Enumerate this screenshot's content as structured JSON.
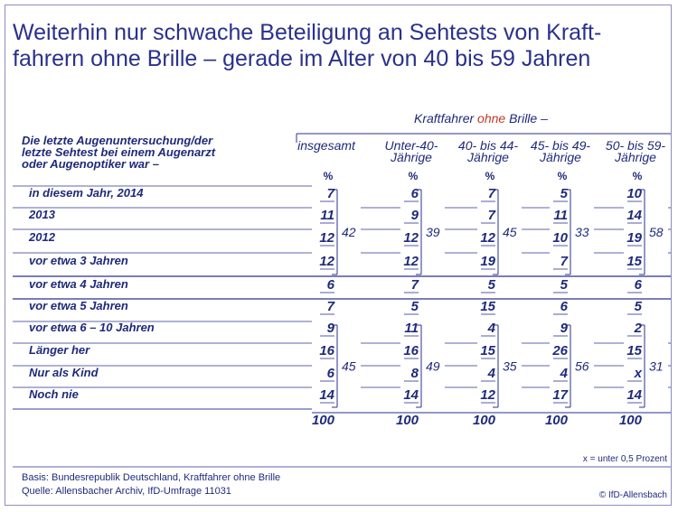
{
  "title": "Weiterhin nur schwache Beteiligung an Sehtests von Kraft-fahrern ohne Brille – gerade im Alter von 40 bis 59 Jahren",
  "question": [
    "Die letzte Augenuntersuchung/der",
    "letzte Sehtest bei einem Augenarzt",
    "oder Augenoptiker war –"
  ],
  "supheader": {
    "pre": "Kraftfahrer ",
    "highlight": "ohne",
    "post": " Brille –"
  },
  "highlight_color": "#c0392b",
  "percent_sign": "%",
  "total_label": "100",
  "footnote": "x = unter 0,5 Prozent",
  "basis": "Basis: Bundesrepublik Deutschland, Kraftfahrer ohne Brille",
  "source": "Quelle: Allensbacher Archiv, IfD-Umfrage 11031",
  "copyright": "© IfD-Allensbach",
  "chart_data": {
    "type": "table",
    "columns": [
      {
        "label": [
          "insgesamt"
        ]
      },
      {
        "label": [
          "Unter-40-",
          "Jährige"
        ]
      },
      {
        "label": [
          "40- bis 44-",
          "Jährige"
        ]
      },
      {
        "label": [
          "45- bis 49-",
          "Jährige"
        ]
      },
      {
        "label": [
          "50- bis 59-",
          "Jährige"
        ]
      }
    ],
    "rows": [
      {
        "label": "in diesem Jahr, 2014",
        "values": [
          "7",
          "6",
          "7",
          "5",
          "10"
        ]
      },
      {
        "label": "2013",
        "values": [
          "11",
          "9",
          "7",
          "11",
          "14"
        ]
      },
      {
        "label": "2012",
        "values": [
          "12",
          "12",
          "12",
          "10",
          "19"
        ]
      },
      {
        "label": "vor etwa 3 Jahren",
        "values": [
          "12",
          "12",
          "19",
          "7",
          "15"
        ]
      },
      {
        "label": "vor etwa 4 Jahren",
        "values": [
          "6",
          "7",
          "5",
          "5",
          "6"
        ]
      },
      {
        "label": "vor etwa 5 Jahren",
        "values": [
          "7",
          "5",
          "15",
          "6",
          "5"
        ]
      },
      {
        "label": "vor etwa 6 – 10 Jahren",
        "values": [
          "9",
          "11",
          "4",
          "9",
          "2"
        ]
      },
      {
        "label": "Länger her",
        "values": [
          "16",
          "16",
          "15",
          "26",
          "15"
        ]
      },
      {
        "label": "Nur als Kind",
        "values": [
          "6",
          "8",
          "4",
          "4",
          "x"
        ]
      },
      {
        "label": "Noch nie",
        "values": [
          "14",
          "14",
          "12",
          "17",
          "14"
        ]
      }
    ],
    "groups": [
      {
        "first_row": 0,
        "last_row": 3,
        "sums": [
          "42",
          "39",
          "45",
          "33",
          "58"
        ]
      },
      {
        "first_row": 6,
        "last_row": 9,
        "sums": [
          "45",
          "49",
          "35",
          "56",
          "31"
        ]
      }
    ],
    "totals": [
      "100",
      "100",
      "100",
      "100",
      "100"
    ]
  }
}
